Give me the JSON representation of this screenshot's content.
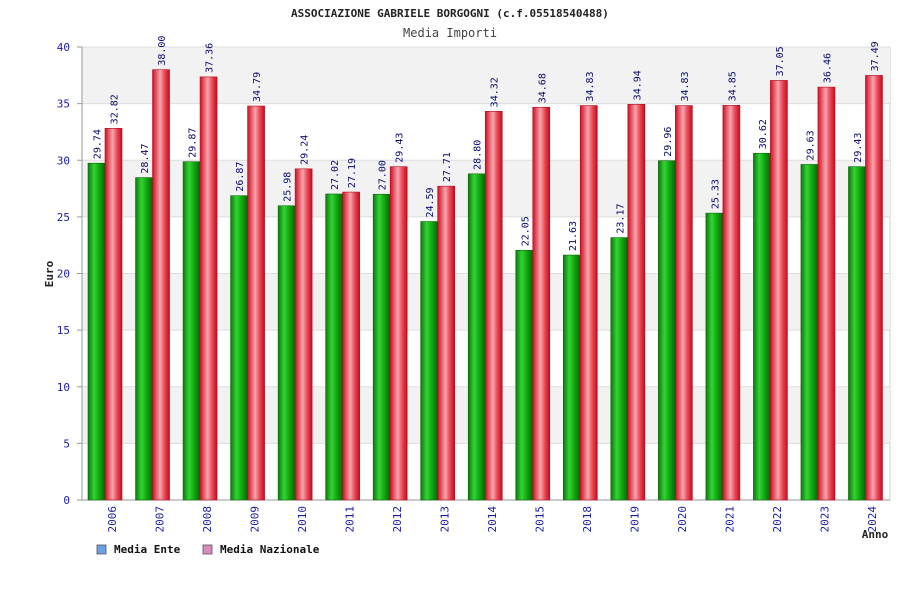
{
  "chart_data": {
    "type": "bar",
    "title": "ASSOCIAZIONE GABRIELE BORGOGNI (c.f.05518540488)",
    "subtitle": "Media Importi",
    "ylabel": "Euro",
    "xlabel": "Anno",
    "ylim": [
      0,
      40
    ],
    "yticks": [
      "0",
      "5",
      "10",
      "15",
      "20",
      "25",
      "30",
      "35",
      "40"
    ],
    "grid": true,
    "legend_position": "bottom-left",
    "categories": [
      "2006",
      "2007",
      "2008",
      "2009",
      "2010",
      "2011",
      "2012",
      "2013",
      "2014",
      "2015",
      "2018",
      "2019",
      "2020",
      "2021",
      "2022",
      "2023",
      "2024"
    ],
    "series": [
      {
        "name": "Media Ente",
        "color": "#13a813",
        "values": [
          29.74,
          28.47,
          29.87,
          26.87,
          25.98,
          27.02,
          27.0,
          24.59,
          28.8,
          22.05,
          21.63,
          23.17,
          29.96,
          25.33,
          30.62,
          29.63,
          29.43
        ],
        "labels": [
          "29.74",
          "28.47",
          "29.87",
          "26.87",
          "25.98",
          "27.02",
          "27.00",
          "24.59",
          "28.80",
          "22.05",
          "21.63",
          "23.17",
          "29.96",
          "25.33",
          "30.62",
          "29.63",
          "29.43"
        ]
      },
      {
        "name": "Media Nazionale",
        "color": "#e8283a",
        "values": [
          32.82,
          38.0,
          37.36,
          34.79,
          29.24,
          27.19,
          29.43,
          27.71,
          34.32,
          34.68,
          34.83,
          34.94,
          34.83,
          34.85,
          37.05,
          36.46,
          37.49
        ],
        "labels": [
          "32.82",
          "38.00",
          "37.36",
          "34.79",
          "29.24",
          "27.19",
          "29.43",
          "27.71",
          "34.32",
          "34.68",
          "34.83",
          "34.94",
          "34.83",
          "34.85",
          "37.05",
          "36.46",
          "37.49"
        ]
      }
    ],
    "legend": [
      {
        "name": "Media Ente",
        "swatch_color": "#6aa0e8"
      },
      {
        "name": "Media Nazionale",
        "swatch_color": "#d98ac0"
      }
    ]
  }
}
